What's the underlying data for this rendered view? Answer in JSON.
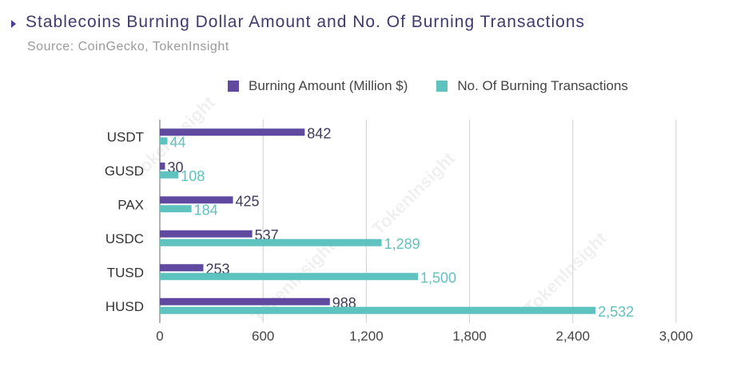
{
  "header": {
    "title": "Stablecoins Burning Dollar Amount and No. Of Burning Transactions",
    "source": "Source: CoinGecko, TokenInsight"
  },
  "watermark": "TokenInsight",
  "colors": {
    "amount": "#5f4aa0",
    "transactions": "#5ec2bf",
    "amount_label": "#3e3a5c",
    "transactions_label": "#5ec2bf"
  },
  "chart_data": {
    "type": "bar",
    "orientation": "horizontal",
    "categories": [
      "USDT",
      "GUSD",
      "PAX",
      "USDC",
      "TUSD",
      "HUSD"
    ],
    "series": [
      {
        "name": "Burning Amount (Million $)",
        "values": [
          842,
          30,
          425,
          537,
          253,
          988
        ],
        "labels": [
          "842",
          "30",
          "425",
          "537",
          "253",
          "988"
        ]
      },
      {
        "name": "No. Of Burning Transactions",
        "values": [
          44,
          108,
          184,
          1289,
          1500,
          2532
        ],
        "labels": [
          "44",
          "108",
          "184",
          "1,289",
          "1,500",
          "2,532"
        ]
      }
    ],
    "xlim": [
      0,
      3000
    ],
    "xticks": [
      "0",
      "600",
      "1,200",
      "1,800",
      "2,400",
      "3,000"
    ],
    "xtick_values": [
      0,
      600,
      1200,
      1800,
      2400,
      3000
    ],
    "grid": "vertical",
    "legend": "top"
  }
}
